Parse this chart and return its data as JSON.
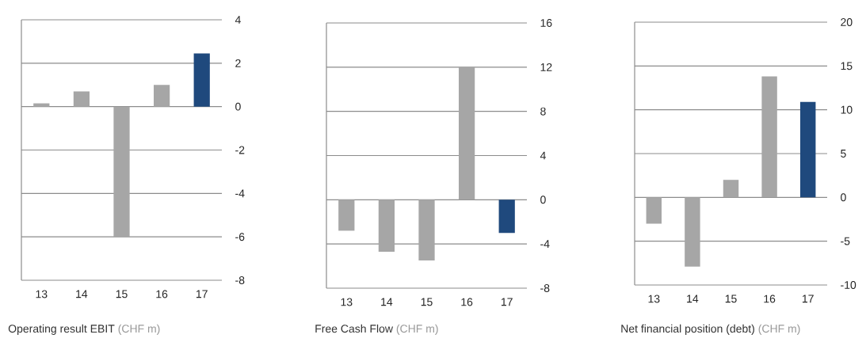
{
  "chart_data": [
    {
      "type": "bar",
      "title": "Operating result EBIT",
      "subtitle": "(CHF m)",
      "categories": [
        "13",
        "14",
        "15",
        "16",
        "17"
      ],
      "values": [
        0.15,
        0.7,
        -6,
        1.0,
        2.45
      ],
      "colors": [
        "#a6a6a6",
        "#a6a6a6",
        "#a6a6a6",
        "#a6a6a6",
        "#1f497d"
      ],
      "ylim": [
        -8,
        4
      ],
      "yticks": [
        -8,
        -6,
        -4,
        -2,
        0,
        2,
        4
      ],
      "grid": "y"
    },
    {
      "type": "bar",
      "title": "Free Cash Flow",
      "subtitle": "(CHF m)",
      "categories": [
        "13",
        "14",
        "15",
        "16",
        "17"
      ],
      "values": [
        -2.8,
        -4.7,
        -5.5,
        12,
        -3
      ],
      "colors": [
        "#a6a6a6",
        "#a6a6a6",
        "#a6a6a6",
        "#a6a6a6",
        "#1f497d"
      ],
      "ylim": [
        -8,
        16
      ],
      "yticks": [
        -8,
        -4,
        0,
        4,
        8,
        12,
        16
      ],
      "grid": "y"
    },
    {
      "type": "bar",
      "title": "Net financial position (debt)",
      "subtitle": "(CHF m)",
      "categories": [
        "13",
        "14",
        "15",
        "16",
        "17"
      ],
      "values": [
        -3,
        -7.9,
        2,
        13.8,
        10.9
      ],
      "colors": [
        "#a6a6a6",
        "#a6a6a6",
        "#a6a6a6",
        "#a6a6a6",
        "#1f497d"
      ],
      "ylim": [
        -10,
        20
      ],
      "yticks": [
        -10,
        -5,
        0,
        5,
        10,
        15,
        20
      ],
      "grid": "y"
    }
  ]
}
